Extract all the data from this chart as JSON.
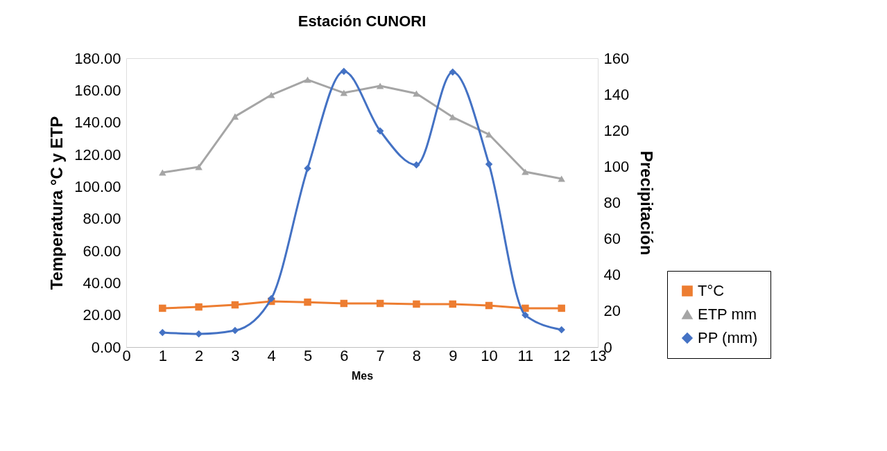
{
  "chart_data": {
    "type": "line",
    "title": "Estación CUNORI",
    "xlabel": "Mes",
    "ylabel": "Temperatura °C y ETP",
    "y2label": "Precipitación",
    "x": [
      1,
      2,
      3,
      4,
      5,
      6,
      7,
      8,
      9,
      10,
      11,
      12
    ],
    "xlim": [
      0,
      13
    ],
    "xticks": [
      0,
      1,
      2,
      3,
      4,
      5,
      6,
      7,
      8,
      9,
      10,
      11,
      12,
      13
    ],
    "ylim": [
      0,
      180
    ],
    "yticks": [
      {
        "value": 0,
        "label": "0.00"
      },
      {
        "value": 20,
        "label": "20.00"
      },
      {
        "value": 40,
        "label": "40.00"
      },
      {
        "value": 60,
        "label": "60.00"
      },
      {
        "value": 80,
        "label": "80.00"
      },
      {
        "value": 100,
        "label": "100.00"
      },
      {
        "value": 120,
        "label": "120.00"
      },
      {
        "value": 140,
        "label": "140.00"
      },
      {
        "value": 160,
        "label": "160.00"
      },
      {
        "value": 180,
        "label": "180.00"
      }
    ],
    "y2lim": [
      0,
      160
    ],
    "y2ticks": [
      0,
      20,
      40,
      60,
      80,
      100,
      120,
      140,
      160
    ],
    "grid": false,
    "legend": "bottom right",
    "series": [
      {
        "name": "T°C",
        "color": "#ed7d31",
        "marker": "square",
        "values": [
          24.2,
          25.0,
          26.3,
          28.5,
          28.0,
          27.2,
          27.2,
          26.8,
          26.8,
          25.9,
          24.2,
          24.2
        ]
      },
      {
        "name": "ETP mm",
        "color": "#a5a5a5",
        "marker": "triangle",
        "values": [
          108.8,
          112.2,
          143.7,
          157.1,
          166.6,
          158.4,
          162.7,
          158.0,
          143.3,
          132.5,
          109.2,
          104.9
        ]
      },
      {
        "name": "PP (mm)",
        "color": "#4472c4",
        "marker": "diamond",
        "axis": "y2",
        "values": [
          8.1,
          7.3,
          9.2,
          26.9,
          99.0,
          152.7,
          119.7,
          100.9,
          152.3,
          101.3,
          17.7,
          9.6
        ]
      }
    ]
  }
}
